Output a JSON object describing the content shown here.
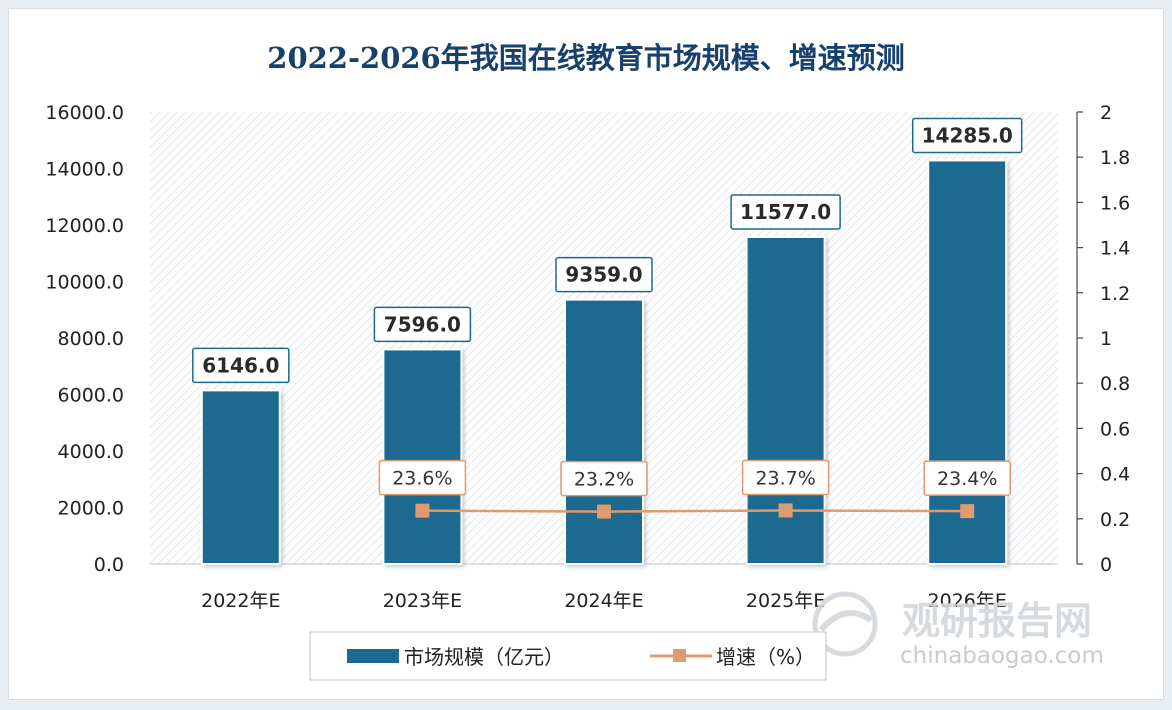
{
  "chart_data": {
    "type": "bar",
    "title": "2022-2026年我国在线教育市场规模、增速预测",
    "categories": [
      "2022年E",
      "2023年E",
      "2024年E",
      "2025年E",
      "2026年E"
    ],
    "series": [
      {
        "name": "市场规模（亿元）",
        "type": "bar",
        "axis": "left",
        "values": [
          6146.0,
          7596.0,
          9359.0,
          11577.0,
          14285.0
        ],
        "labels": [
          "6146.0",
          "7596.0",
          "9359.0",
          "11577.0",
          "14285.0"
        ],
        "color": "#1a6a8f"
      },
      {
        "name": "增速（%）",
        "type": "line",
        "axis": "right",
        "values": [
          null,
          0.236,
          0.232,
          0.237,
          0.234
        ],
        "labels": [
          "",
          "23.6%",
          "23.2%",
          "23.7%",
          "23.4%"
        ],
        "color": "#e09a70"
      }
    ],
    "y_left": {
      "min": 0,
      "max": 16000,
      "ticks": [
        "0.0",
        "2000.0",
        "4000.0",
        "6000.0",
        "8000.0",
        "10000.0",
        "12000.0",
        "14000.0",
        "16000.0"
      ]
    },
    "y_right": {
      "min": 0,
      "max": 2,
      "ticks": [
        "0",
        "0.2",
        "0.4",
        "0.6",
        "0.8",
        "1",
        "1.2",
        "1.4",
        "1.6",
        "1.8",
        "2"
      ]
    },
    "legend_position": "bottom",
    "grid": false
  },
  "watermark": {
    "cn": "观研报告网",
    "en": "chinabaogao.com"
  }
}
